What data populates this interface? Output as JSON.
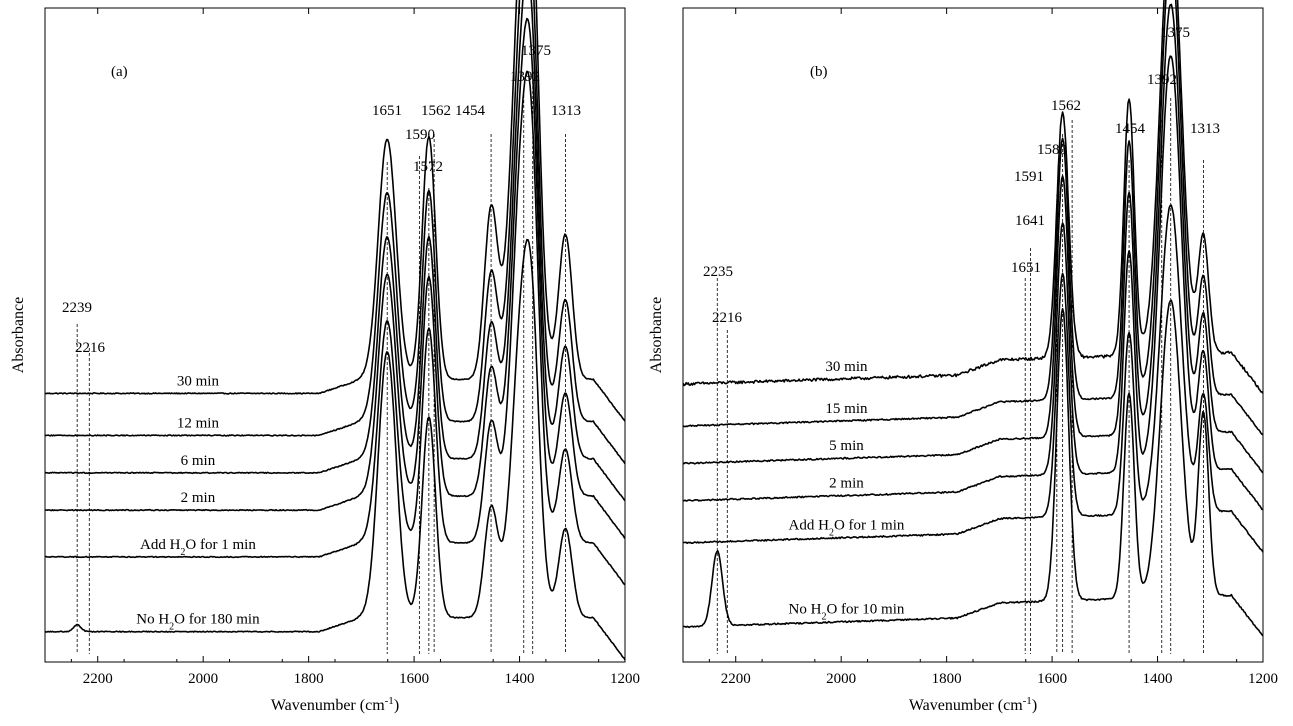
{
  "chart_data": [
    {
      "type": "line",
      "panel_label": "(a)",
      "xlabel": "Wavenumber (cm⁻¹)",
      "ylabel": "Absorbance",
      "xlim": [
        2300,
        1200
      ],
      "x_reversed": true,
      "y_ticks_shown": false,
      "grid": false,
      "xticks": [
        2200,
        2000,
        1800,
        1600,
        1400,
        1200
      ],
      "peak_markers": [
        2239,
        2216,
        1651,
        1590,
        1572,
        1562,
        1454,
        1392,
        1375,
        1313
      ],
      "peak_labels": [
        "2239",
        "2216",
        "1651",
        "1590",
        "1572",
        "1562",
        "1454",
        "1392",
        "1375",
        "1313"
      ],
      "series": [
        {
          "name": "30 min",
          "baseline": 0.7,
          "peaks": [
            [
              1651,
              1.03
            ],
            [
              1572,
              1.04
            ],
            [
              1454,
              0.72
            ],
            [
              1392,
              1.96
            ],
            [
              1375,
              0.66
            ],
            [
              1313,
              0.62
            ]
          ]
        },
        {
          "name": "12 min",
          "baseline": 0.52,
          "peaks": [
            [
              1651,
              0.98
            ],
            [
              1572,
              0.99
            ],
            [
              1454,
              0.62
            ],
            [
              1392,
              1.85
            ],
            [
              1375,
              0.59
            ],
            [
              1313,
              0.52
            ]
          ]
        },
        {
          "name": "6 min",
          "baseline": 0.36,
          "peaks": [
            [
              1651,
              0.95
            ],
            [
              1572,
              0.95
            ],
            [
              1454,
              0.56
            ],
            [
              1392,
              1.78
            ],
            [
              1375,
              0.56
            ],
            [
              1313,
              0.48
            ]
          ]
        },
        {
          "name": "2 min",
          "baseline": 0.2,
          "peaks": [
            [
              1651,
              0.95
            ],
            [
              1572,
              0.94
            ],
            [
              1454,
              0.53
            ],
            [
              1392,
              1.74
            ],
            [
              1375,
              0.54
            ],
            [
              1313,
              0.44
            ]
          ]
        },
        {
          "name": "Add H₂O for 1 min",
          "baseline": 0.0,
          "peaks": [
            [
              1651,
              0.95
            ],
            [
              1572,
              0.92
            ],
            [
              1454,
              0.5
            ],
            [
              1392,
              1.72
            ],
            [
              1375,
              0.53
            ],
            [
              1313,
              0.4
            ]
          ]
        },
        {
          "name": "No H₂O for 180 min",
          "baseline": -0.32,
          "peaks": [
            [
              2239,
              0.03
            ],
            [
              1651,
              1.14
            ],
            [
              1572,
              0.86
            ],
            [
              1454,
              0.46
            ],
            [
              1392,
              1.36
            ],
            [
              1375,
              0.45
            ],
            [
              1313,
              0.38
            ]
          ]
        }
      ],
      "curve_labels": [
        "30 min",
        "12 min",
        "6 min",
        "2 min",
        "Add H₂O for 1 min",
        "No H₂O for 180 min"
      ]
    },
    {
      "type": "line",
      "panel_label": "(b)",
      "xlabel": "Wavenumber (cm⁻¹)",
      "ylabel": "Absorbance",
      "xlim": [
        2300,
        1200
      ],
      "x_reversed": true,
      "y_ticks_shown": false,
      "grid": false,
      "xticks": [
        2200,
        2000,
        1800,
        1600,
        1400,
        1200
      ],
      "peak_markers": [
        2235,
        2216,
        1651,
        1641,
        1591,
        1580,
        1562,
        1454,
        1392,
        1375,
        1313
      ],
      "peak_labels": [
        "2235",
        "2216",
        "1651",
        "1641",
        "1591",
        "1580",
        "1562",
        "1454",
        "1392",
        "1375",
        "1313"
      ],
      "series": [
        {
          "name": "30 min",
          "baseline": 0.74,
          "peaks": [
            [
              1580,
              1.05
            ],
            [
              1454,
              1.1
            ],
            [
              1375,
              1.88
            ],
            [
              1313,
              0.5
            ]
          ]
        },
        {
          "name": "15 min",
          "baseline": 0.56,
          "peaks": [
            [
              1580,
              1.12
            ],
            [
              1454,
              1.1
            ],
            [
              1375,
              1.9
            ],
            [
              1313,
              0.5
            ]
          ]
        },
        {
          "name": "5 min",
          "baseline": 0.4,
          "peaks": [
            [
              1580,
              1.12
            ],
            [
              1454,
              1.04
            ],
            [
              1375,
              1.84
            ],
            [
              1313,
              0.5
            ]
          ]
        },
        {
          "name": "2 min",
          "baseline": 0.24,
          "peaks": [
            [
              1580,
              1.08
            ],
            [
              1454,
              0.95
            ],
            [
              1375,
              1.78
            ],
            [
              1313,
              0.5
            ]
          ]
        },
        {
          "name": "Add H₂O for 1 min",
          "baseline": 0.06,
          "peaks": [
            [
              1580,
              1.04
            ],
            [
              1454,
              0.78
            ],
            [
              1375,
              1.32
            ],
            [
              1313,
              0.5
            ]
          ]
        },
        {
          "name": "No H₂O for 10 min",
          "baseline": -0.3,
          "peaks": [
            [
              2235,
              0.32
            ],
            [
              1580,
              1.25
            ],
            [
              1454,
              0.88
            ],
            [
              1375,
              1.27
            ],
            [
              1313,
              0.78
            ]
          ]
        }
      ],
      "curve_labels": [
        "30 min",
        "15 min",
        "5 min",
        "2 min",
        "Add H₂O for 1 min",
        "No H₂O for 10 min"
      ]
    }
  ]
}
